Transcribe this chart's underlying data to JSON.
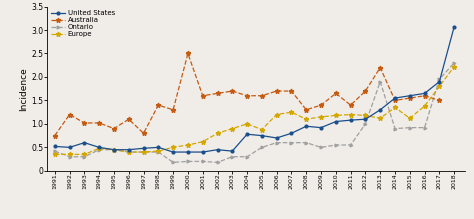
{
  "years": [
    1991,
    1992,
    1993,
    1994,
    1995,
    1996,
    1997,
    1998,
    1999,
    2000,
    2001,
    2002,
    2003,
    2004,
    2005,
    2006,
    2007,
    2008,
    2009,
    2010,
    2011,
    2012,
    2013,
    2014,
    2015,
    2016,
    2017,
    2018
  ],
  "united_states": [
    0.52,
    0.5,
    0.6,
    0.5,
    0.45,
    0.45,
    0.48,
    0.5,
    0.4,
    0.4,
    0.4,
    0.45,
    0.42,
    0.78,
    0.75,
    0.7,
    0.8,
    0.95,
    0.92,
    1.05,
    1.08,
    1.1,
    1.3,
    1.55,
    1.6,
    1.65,
    1.9,
    3.07
  ],
  "australia": [
    0.75,
    1.2,
    1.02,
    1.02,
    0.9,
    1.1,
    0.8,
    1.4,
    1.3,
    2.5,
    1.6,
    1.65,
    1.7,
    1.6,
    1.6,
    1.7,
    1.7,
    1.3,
    1.4,
    1.65,
    1.4,
    1.7,
    2.2,
    1.5,
    1.55,
    1.6,
    1.5,
    null
  ],
  "ontario": [
    0.42,
    0.3,
    0.3,
    0.45,
    0.45,
    0.4,
    0.4,
    0.4,
    0.18,
    0.2,
    0.2,
    0.18,
    0.3,
    0.3,
    0.5,
    0.6,
    0.6,
    0.6,
    0.5,
    0.55,
    0.55,
    1.0,
    1.9,
    0.9,
    0.92,
    0.92,
    1.95,
    2.3
  ],
  "europe": [
    0.35,
    0.35,
    0.35,
    0.48,
    0.45,
    0.4,
    0.4,
    0.42,
    0.5,
    0.55,
    0.62,
    0.8,
    0.9,
    1.0,
    0.88,
    1.2,
    1.25,
    1.1,
    1.15,
    1.18,
    1.2,
    1.18,
    1.12,
    1.35,
    1.12,
    1.38,
    1.8,
    2.22
  ],
  "us_color": "#1a4e8c",
  "australia_color": "#c55a11",
  "ontario_color": "#a0a0a0",
  "europe_color": "#d4a600",
  "ylim": [
    0,
    3.5
  ],
  "ylabel": "Incidence",
  "yticks": [
    0,
    0.5,
    1.0,
    1.5,
    2.0,
    2.5,
    3.0,
    3.5
  ],
  "ytick_labels": [
    "0",
    "0.5",
    "1.0",
    "1.5",
    "2.0",
    "2.5",
    "3.0",
    "3.5"
  ]
}
